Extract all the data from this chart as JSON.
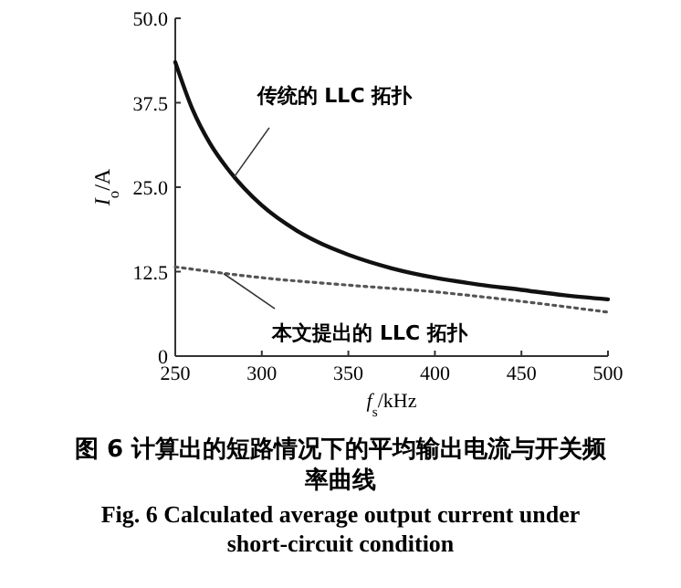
{
  "chart_data": {
    "type": "line",
    "title": "图 6  计算出的短路情况下的平均输出电流与开关频率曲线",
    "subtitle": "Fig. 6  Calculated average output current under short-circuit condition",
    "xlabel": "f$_{s}$/kHz",
    "ylabel": "I$_{o}$/A",
    "xlim": [
      250,
      500
    ],
    "xticks": [
      250,
      300,
      350,
      400,
      450,
      500
    ],
    "ylim": [
      0,
      50
    ],
    "yticks": [
      0,
      12.5,
      {
        "value": 25,
        "label": "25.0"
      },
      37.5,
      {
        "value": 50,
        "label": "50.0"
      }
    ],
    "x": [
      250,
      260,
      270,
      280,
      290,
      300,
      320,
      340,
      350,
      375,
      400,
      425,
      450,
      475,
      500
    ],
    "series": [
      {
        "color": "#111111",
        "line_style": "solid",
        "values": [
          43.5,
          36.5,
          31.5,
          27.8,
          24.8,
          22.3,
          18.6,
          16,
          15,
          13,
          11.6,
          10.6,
          9.8,
          9,
          8.4
        ]
      },
      {
        "color": "#555555",
        "line_style": "dotted",
        "x": [
          250,
          300,
          350,
          400,
          450,
          500
        ],
        "values": [
          13.2,
          11.6,
          10.5,
          9.5,
          8.1,
          6.5
        ]
      }
    ],
    "annotations": [
      {
        "text": "传统的 LLC 拓扑",
        "x": 284,
        "y": 26.5
      },
      {
        "text": "本文提出的 LLC 拓扑",
        "x": 278,
        "y": 12.2
      }
    ],
    "grid": false,
    "marker": "none"
  }
}
